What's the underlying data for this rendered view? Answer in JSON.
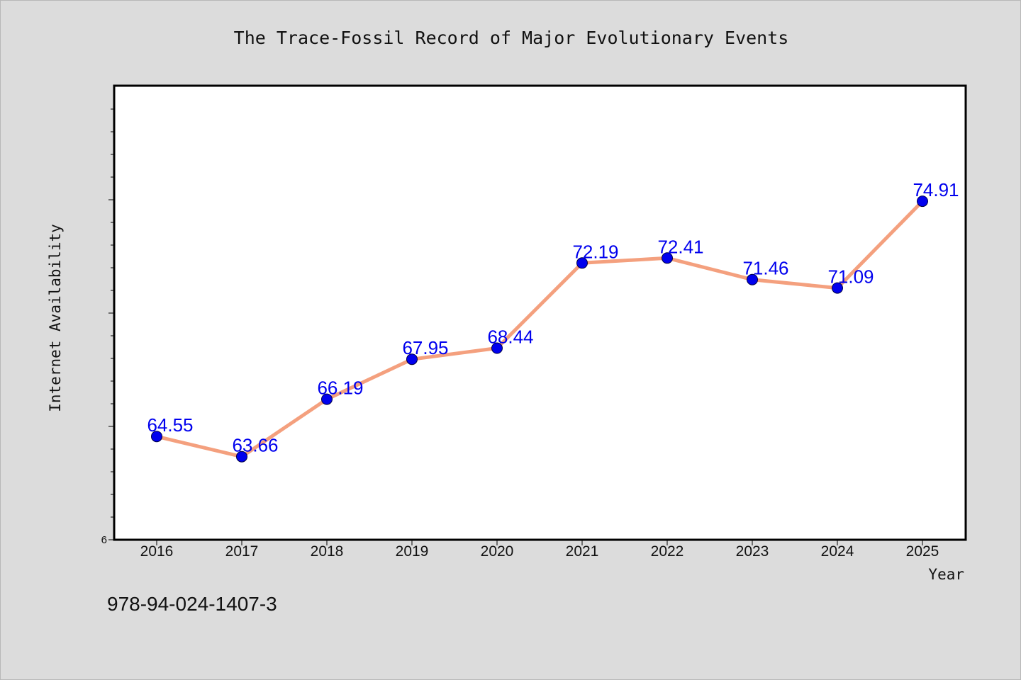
{
  "chart_data": {
    "type": "line",
    "title": "The Trace-Fossil Record of Major Evolutionary Events",
    "xlabel": "Year",
    "ylabel": "Internet Availability",
    "categories": [
      "2016",
      "2017",
      "2018",
      "2019",
      "2020",
      "2021",
      "2022",
      "2023",
      "2024",
      "2025"
    ],
    "series": [
      {
        "values": [
          64.55,
          63.66,
          66.19,
          67.95,
          68.44,
          72.19,
          72.41,
          71.46,
          71.09,
          74.91
        ],
        "data_labels": [
          "64.55",
          "63.66",
          "66.19",
          "67.95",
          "68.44",
          "72.19",
          "72.41",
          "71.46",
          "71.09",
          "74.91"
        ]
      }
    ],
    "y_tick_labels": [
      "6"
    ],
    "ylim": [
      60.0,
      80.0
    ],
    "grid": false,
    "legend": "none",
    "colors": {
      "line": "#f4a07e",
      "marker": "#0000ee",
      "data_label": "#0000ee",
      "plot_background": "#ffffff",
      "page_background": "#dcdcdc"
    }
  },
  "footer": {
    "isbn": "978-94-024-1407-3"
  }
}
